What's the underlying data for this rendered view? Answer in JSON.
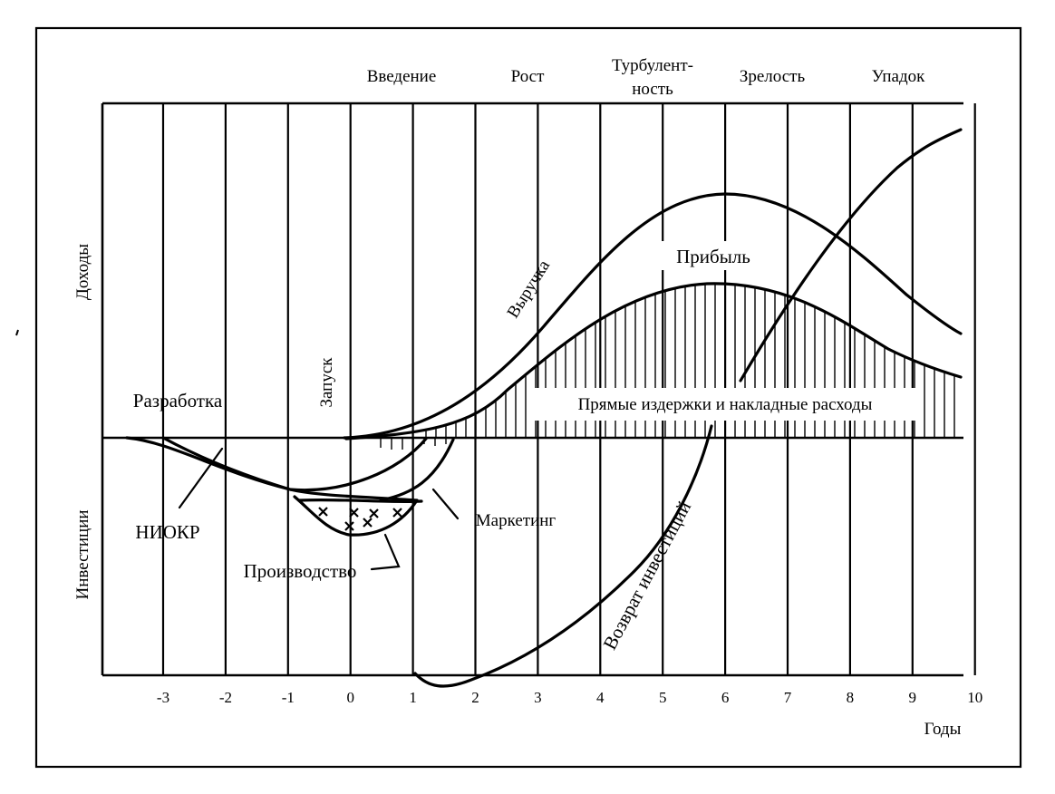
{
  "stages": [
    "Введение",
    "Рост",
    "Турбулент-",
    "ность",
    "Зрелость",
    "Упадок"
  ],
  "y_axis": {
    "upper": "Доходы",
    "lower": "Инвестиции"
  },
  "x_axis": {
    "label": "Годы",
    "ticks": [
      "-3",
      "-2",
      "-1",
      "0",
      "1",
      "2",
      "3",
      "4",
      "5",
      "6",
      "7",
      "8",
      "9",
      "10"
    ]
  },
  "labels": {
    "development": "Разработка",
    "launch": "Запуск",
    "revenue": "Выручка",
    "profit": "Прибыль",
    "direct_costs": "Прямые издержки и накладные расходы",
    "rnd": "НИОКР",
    "marketing": "Маркетинг",
    "production": "Производство",
    "roi": "Возврат инвестиций"
  },
  "chart_data": {
    "type": "line",
    "xlabel": "Годы",
    "ylabel_upper": "Доходы",
    "ylabel_lower": "Инвестиции",
    "x_ticks": [
      -3,
      -2,
      -1,
      0,
      1,
      2,
      3,
      4,
      5,
      6,
      7,
      8,
      9,
      10
    ],
    "grid": "vertical lines at each year",
    "stages": [
      "Введение",
      "Рост",
      "Турбулентность",
      "Зрелость",
      "Упадок"
    ]
  }
}
